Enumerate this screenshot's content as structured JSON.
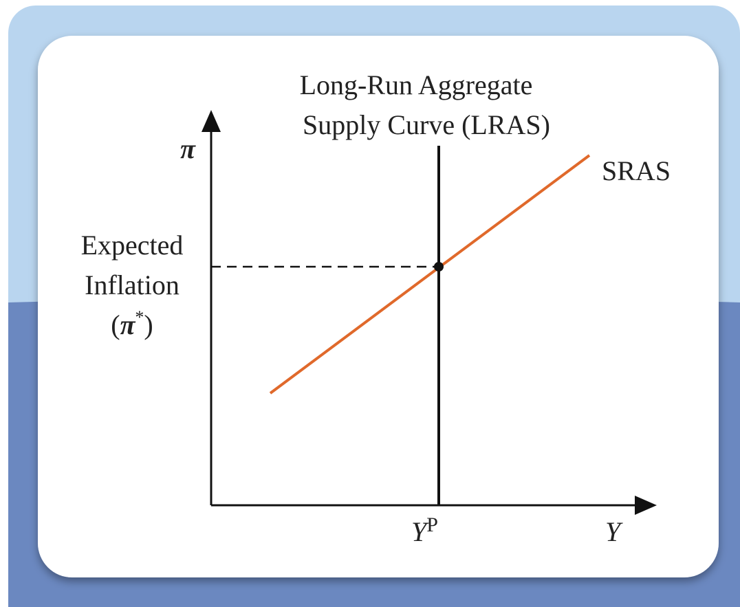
{
  "diagram": {
    "y_axis_label": "π",
    "x_axis_label": "Y",
    "lras_label": [
      "Long-Run Aggregate",
      "Supply Curve (LRAS)"
    ],
    "sras_label": "SRAS",
    "expected_inflation": {
      "lines": [
        "Expected",
        "Inflation"
      ],
      "open": "(",
      "symbol": "π",
      "superscript": "*",
      "close": ")"
    },
    "potential_output": {
      "symbol": "Y",
      "superscript": "P"
    }
  }
}
